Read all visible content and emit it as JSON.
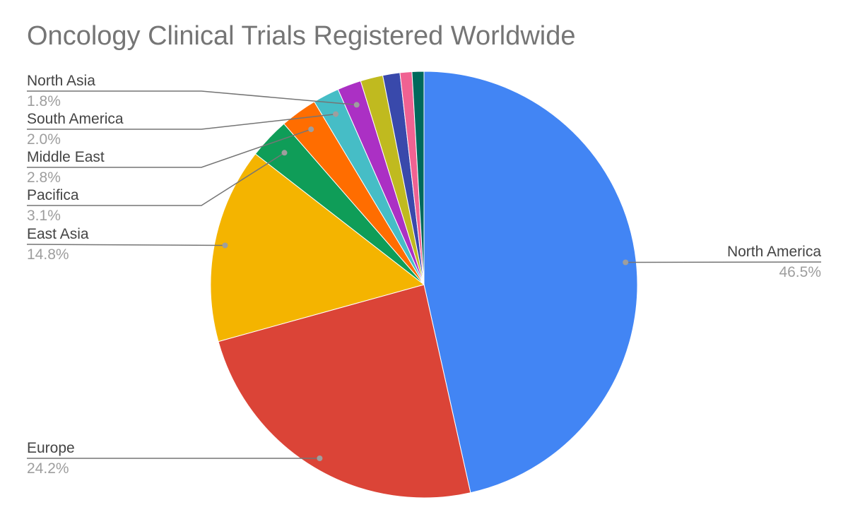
{
  "chart_data": {
    "type": "pie",
    "title": "Oncology Clinical Trials Registered Worldwide",
    "start_angle_deg": 0,
    "direction": "clockwise",
    "slices": [
      {
        "label": "North America",
        "value": 46.5,
        "value_label": "46.5%",
        "color": "#4285F4",
        "labeled": true
      },
      {
        "label": "Europe",
        "value": 24.2,
        "value_label": "24.2%",
        "color": "#DB4437",
        "labeled": true
      },
      {
        "label": "East Asia",
        "value": 14.8,
        "value_label": "14.8%",
        "color": "#F4B400",
        "labeled": true
      },
      {
        "label": "Pacifica",
        "value": 3.1,
        "value_label": "3.1%",
        "color": "#0F9D58",
        "labeled": true
      },
      {
        "label": "Middle East",
        "value": 2.8,
        "value_label": "2.8%",
        "color": "#FF6D00",
        "labeled": true
      },
      {
        "label": "South America",
        "value": 2.0,
        "value_label": "2.0%",
        "color": "#46BDC6",
        "labeled": true
      },
      {
        "label": "North Asia",
        "value": 1.8,
        "value_label": "1.8%",
        "color": "#AB30C4",
        "labeled": true
      },
      {
        "label": "",
        "value": 1.7,
        "value_label": "",
        "color": "#C0BA1F",
        "labeled": false
      },
      {
        "label": "",
        "value": 1.3,
        "value_label": "",
        "color": "#3949AB",
        "labeled": false
      },
      {
        "label": "",
        "value": 0.9,
        "value_label": "",
        "color": "#F06292",
        "labeled": false
      },
      {
        "label": "",
        "value": 0.9,
        "value_label": "",
        "color": "#00695C",
        "labeled": false
      }
    ],
    "legend": "none",
    "labels": "leader-lines"
  }
}
